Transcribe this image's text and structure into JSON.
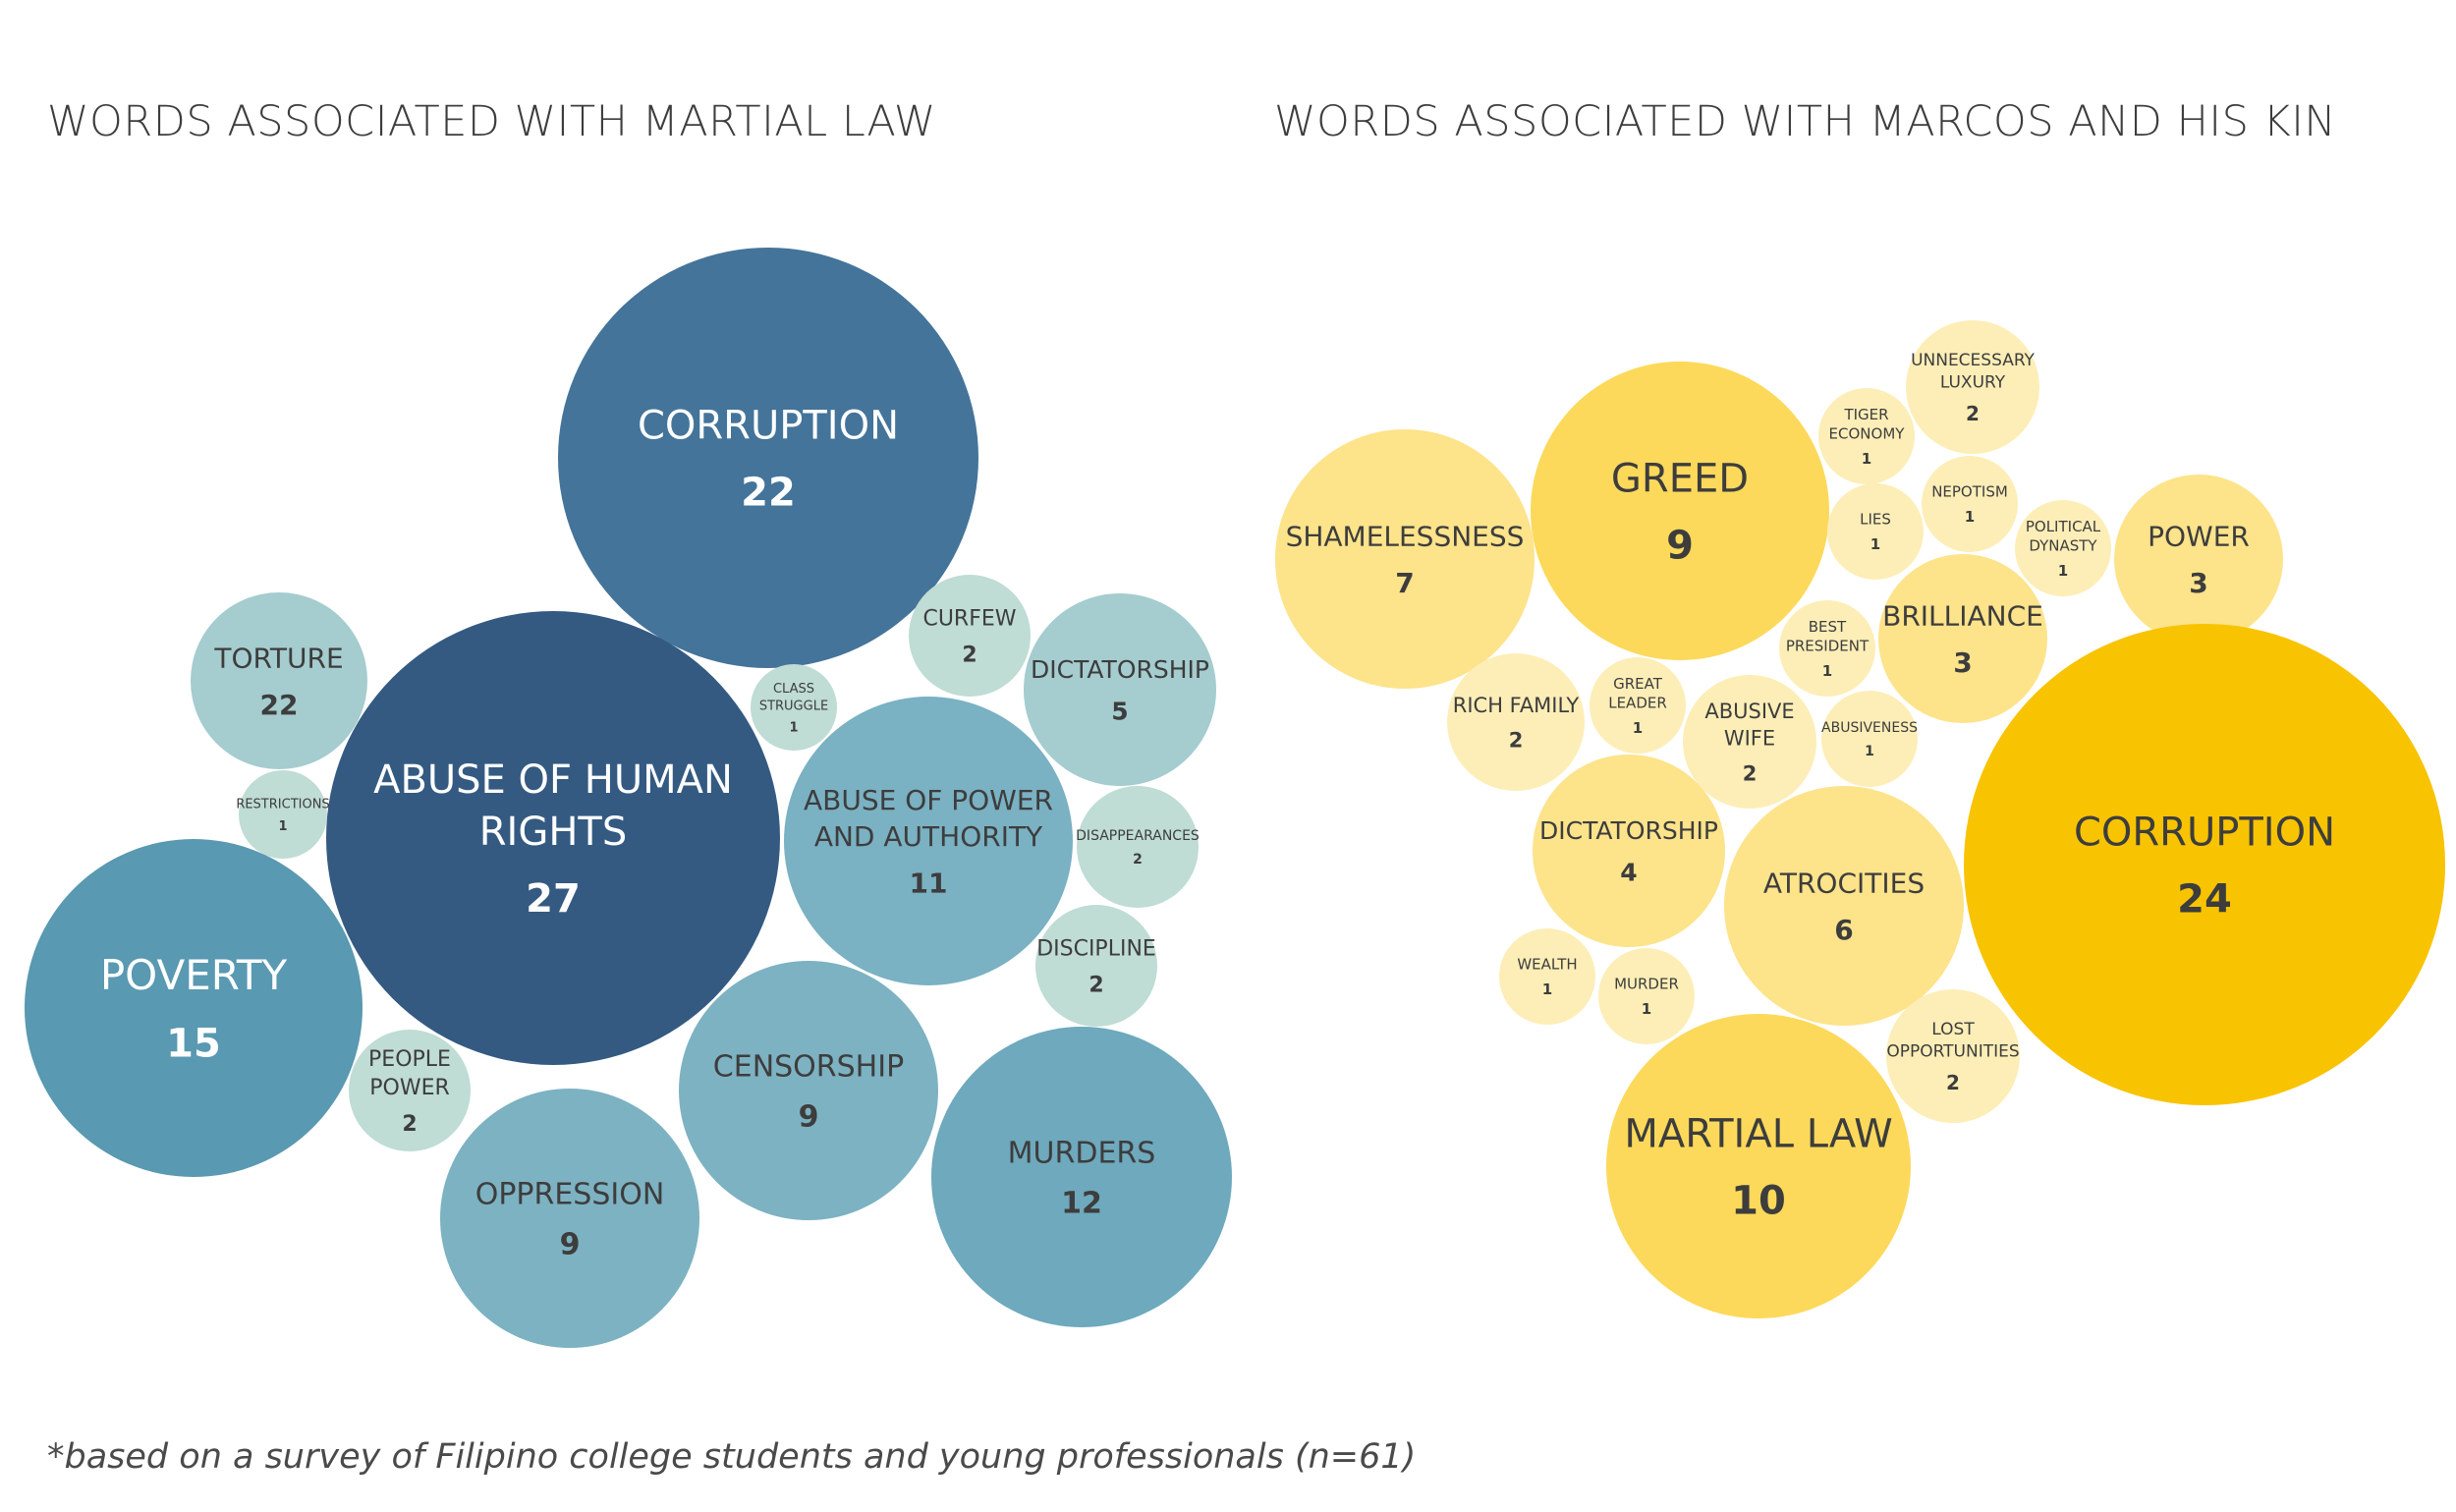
{
  "footnote": "*based on a survey of Filipino college students and young professionals (n=61)",
  "colors": {
    "blue_dark": "#345a82",
    "blue_mid": "#44749a",
    "blue_teal": "#5999b1",
    "blue_light": "#7db2c2",
    "blue_pale": "#a5cccf",
    "blue_mint": "#bfdcd5",
    "yellow_gold": "#f8c300",
    "yellow_mid": "#fcd95a",
    "yellow_light": "#fde38a",
    "yellow_pale": "#fdeeb7"
  },
  "chart_data": [
    {
      "type": "bubble",
      "title": "WORDS ASSOCIATED WITH MARTIAL LAW",
      "series": [
        {
          "label": [
            "CORRUPTION"
          ],
          "value": "22"
        },
        {
          "label": [
            "ABUSE OF HUMAN",
            "RIGHTS"
          ],
          "value": "27"
        },
        {
          "label": [
            "TORTURE"
          ],
          "value": "22"
        },
        {
          "label": [
            "RESTRICTIONS"
          ],
          "value": "1"
        },
        {
          "label": [
            "POVERTY"
          ],
          "value": "15"
        },
        {
          "label": [
            "PEOPLE",
            "POWER"
          ],
          "value": "2"
        },
        {
          "label": [
            "OPPRESSION"
          ],
          "value": "9"
        },
        {
          "label": [
            "CENSORSHIP"
          ],
          "value": "9"
        },
        {
          "label": [
            "MURDERS"
          ],
          "value": "12"
        },
        {
          "label": [
            "ABUSE OF POWER",
            "AND AUTHORITY"
          ],
          "value": "11"
        },
        {
          "label": [
            "CLASS",
            "STRUGGLE"
          ],
          "value": "1"
        },
        {
          "label": [
            "CURFEW"
          ],
          "value": "2"
        },
        {
          "label": [
            "DICTATORSHIP"
          ],
          "value": "5"
        },
        {
          "label": [
            "DISAPPEARANCES"
          ],
          "value": "2"
        },
        {
          "label": [
            "DISCIPLINE"
          ],
          "value": "2"
        }
      ]
    },
    {
      "type": "bubble",
      "title": "WORDS ASSOCIATED WITH MARCOS AND HIS KIN",
      "series": [
        {
          "label": [
            "SHAMELESSNESS"
          ],
          "value": "7"
        },
        {
          "label": [
            "GREED"
          ],
          "value": "9"
        },
        {
          "label": [
            "TIGER",
            "ECONOMY"
          ],
          "value": "1"
        },
        {
          "label": [
            "UNNECESSARY",
            "LUXURY"
          ],
          "value": "2"
        },
        {
          "label": [
            "LIES"
          ],
          "value": "1"
        },
        {
          "label": [
            "NEPOTISM"
          ],
          "value": "1"
        },
        {
          "label": [
            "POLITICAL",
            "DYNASTY"
          ],
          "value": "1"
        },
        {
          "label": [
            "POWER"
          ],
          "value": "3"
        },
        {
          "label": [
            "BEST",
            "PRESIDENT"
          ],
          "value": "1"
        },
        {
          "label": [
            "BRILLIANCE"
          ],
          "value": "3"
        },
        {
          "label": [
            "RICH FAMILY"
          ],
          "value": "2"
        },
        {
          "label": [
            "GREAT",
            "LEADER"
          ],
          "value": "1"
        },
        {
          "label": [
            "ABUSIVE",
            "WIFE"
          ],
          "value": "2"
        },
        {
          "label": [
            "ABUSIVENESS"
          ],
          "value": "1"
        },
        {
          "label": [
            "CORRUPTION"
          ],
          "value": "24"
        },
        {
          "label": [
            "DICTATORSHIP"
          ],
          "value": "4"
        },
        {
          "label": [
            "ATROCITIES"
          ],
          "value": "6"
        },
        {
          "label": [
            "WEALTH"
          ],
          "value": "1"
        },
        {
          "label": [
            "MURDER"
          ],
          "value": "1"
        },
        {
          "label": [
            "LOST",
            "OPPORTUNITIES"
          ],
          "value": "2"
        },
        {
          "label": [
            "MARTIAL LAW"
          ],
          "value": "10"
        }
      ]
    }
  ]
}
